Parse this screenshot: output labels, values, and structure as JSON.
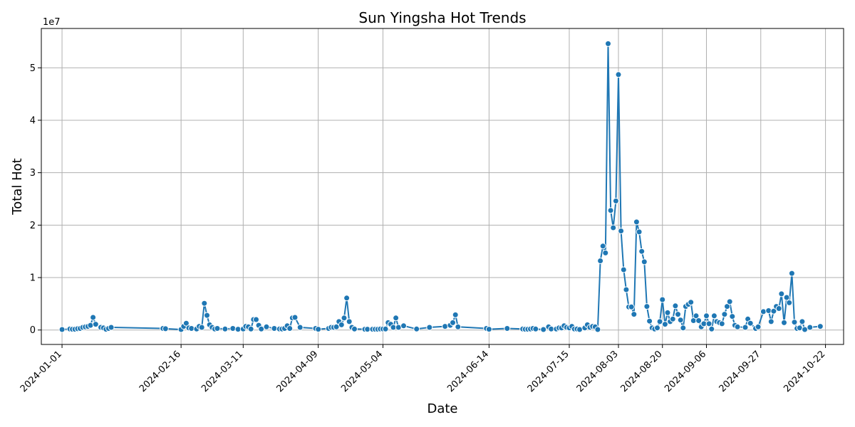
{
  "chart_data": {
    "type": "line",
    "title": "Sun Yingsha Hot Trends",
    "xlabel": "Date",
    "ylabel": "Total Hot",
    "y_scale_label": "1e7",
    "y_tick_divisor": 10000000,
    "ylim": [
      -2750000,
      57500000
    ],
    "xlim": [
      "2023-12-24",
      "2024-10-29"
    ],
    "grid": true,
    "x_ticks": [
      "2024-01-01",
      "2024-02-16",
      "2024-03-11",
      "2024-04-09",
      "2024-05-04",
      "2024-06-14",
      "2024-07-15",
      "2024-08-03",
      "2024-08-20",
      "2024-09-06",
      "2024-09-27",
      "2024-10-22"
    ],
    "y_ticks": [
      0,
      10000000,
      20000000,
      30000000,
      40000000,
      50000000
    ],
    "color": "#1f77b4",
    "series": [
      {
        "points": [
          [
            "2024-01-01",
            100000
          ],
          [
            "2024-01-04",
            200000
          ],
          [
            "2024-01-05",
            150000
          ],
          [
            "2024-01-06",
            150000
          ],
          [
            "2024-01-07",
            250000
          ],
          [
            "2024-01-08",
            300000
          ],
          [
            "2024-01-09",
            500000
          ],
          [
            "2024-01-10",
            600000
          ],
          [
            "2024-01-11",
            700000
          ],
          [
            "2024-01-12",
            900000
          ],
          [
            "2024-01-13",
            2400000
          ],
          [
            "2024-01-14",
            1100000
          ],
          [
            "2024-01-16",
            500000
          ],
          [
            "2024-01-17",
            400000
          ],
          [
            "2024-01-18",
            150000
          ],
          [
            "2024-01-19",
            300000
          ],
          [
            "2024-01-20",
            500000
          ],
          [
            "2024-02-09",
            300000
          ],
          [
            "2024-02-10",
            250000
          ],
          [
            "2024-02-16",
            100000
          ],
          [
            "2024-02-17",
            700000
          ],
          [
            "2024-02-18",
            1300000
          ],
          [
            "2024-02-19",
            400000
          ],
          [
            "2024-02-20",
            300000
          ],
          [
            "2024-02-22",
            200000
          ],
          [
            "2024-02-23",
            700000
          ],
          [
            "2024-02-24",
            500000
          ],
          [
            "2024-02-25",
            5100000
          ],
          [
            "2024-02-26",
            2800000
          ],
          [
            "2024-02-27",
            1000000
          ],
          [
            "2024-02-28",
            500000
          ],
          [
            "2024-02-29",
            200000
          ],
          [
            "2024-03-01",
            300000
          ],
          [
            "2024-03-04",
            200000
          ],
          [
            "2024-03-07",
            300000
          ],
          [
            "2024-03-09",
            150000
          ],
          [
            "2024-03-11",
            200000
          ],
          [
            "2024-03-12",
            700000
          ],
          [
            "2024-03-13",
            600000
          ],
          [
            "2024-03-14",
            200000
          ],
          [
            "2024-03-15",
            2000000
          ],
          [
            "2024-03-16",
            2000000
          ],
          [
            "2024-03-17",
            900000
          ],
          [
            "2024-03-18",
            200000
          ],
          [
            "2024-03-20",
            600000
          ],
          [
            "2024-03-23",
            300000
          ],
          [
            "2024-03-25",
            200000
          ],
          [
            "2024-03-26",
            200000
          ],
          [
            "2024-03-27",
            300000
          ],
          [
            "2024-03-28",
            800000
          ],
          [
            "2024-03-29",
            300000
          ],
          [
            "2024-03-30",
            2300000
          ],
          [
            "2024-03-31",
            2400000
          ],
          [
            "2024-04-02",
            500000
          ],
          [
            "2024-04-08",
            300000
          ],
          [
            "2024-04-09",
            150000
          ],
          [
            "2024-04-13",
            300000
          ],
          [
            "2024-04-14",
            500000
          ],
          [
            "2024-04-15",
            500000
          ],
          [
            "2024-04-16",
            600000
          ],
          [
            "2024-04-17",
            1600000
          ],
          [
            "2024-04-18",
            1000000
          ],
          [
            "2024-04-19",
            2300000
          ],
          [
            "2024-04-20",
            6100000
          ],
          [
            "2024-04-21",
            1600000
          ],
          [
            "2024-04-22",
            500000
          ],
          [
            "2024-04-23",
            200000
          ],
          [
            "2024-04-27",
            150000
          ],
          [
            "2024-04-28",
            150000
          ],
          [
            "2024-04-30",
            150000
          ],
          [
            "2024-05-01",
            150000
          ],
          [
            "2024-05-02",
            150000
          ],
          [
            "2024-05-03",
            200000
          ],
          [
            "2024-05-04",
            200000
          ],
          [
            "2024-05-05",
            200000
          ],
          [
            "2024-05-06",
            1400000
          ],
          [
            "2024-05-07",
            1100000
          ],
          [
            "2024-05-08",
            500000
          ],
          [
            "2024-05-09",
            2300000
          ],
          [
            "2024-05-10",
            500000
          ],
          [
            "2024-05-12",
            800000
          ],
          [
            "2024-05-17",
            200000
          ],
          [
            "2024-05-22",
            500000
          ],
          [
            "2024-05-28",
            700000
          ],
          [
            "2024-05-30",
            900000
          ],
          [
            "2024-05-31",
            1400000
          ],
          [
            "2024-06-01",
            2900000
          ],
          [
            "2024-06-02",
            600000
          ],
          [
            "2024-06-13",
            300000
          ],
          [
            "2024-06-14",
            150000
          ],
          [
            "2024-06-21",
            300000
          ],
          [
            "2024-06-27",
            200000
          ],
          [
            "2024-06-28",
            150000
          ],
          [
            "2024-06-29",
            150000
          ],
          [
            "2024-06-30",
            200000
          ],
          [
            "2024-07-01",
            300000
          ],
          [
            "2024-07-02",
            200000
          ],
          [
            "2024-07-05",
            100000
          ],
          [
            "2024-07-07",
            600000
          ],
          [
            "2024-07-08",
            200000
          ],
          [
            "2024-07-10",
            200000
          ],
          [
            "2024-07-11",
            400000
          ],
          [
            "2024-07-12",
            400000
          ],
          [
            "2024-07-13",
            800000
          ],
          [
            "2024-07-14",
            500000
          ],
          [
            "2024-07-15",
            400000
          ],
          [
            "2024-07-16",
            700000
          ],
          [
            "2024-07-17",
            200000
          ],
          [
            "2024-07-18",
            200000
          ],
          [
            "2024-07-19",
            100000
          ],
          [
            "2024-07-21",
            400000
          ],
          [
            "2024-07-22",
            1000000
          ],
          [
            "2024-07-23",
            500000
          ],
          [
            "2024-07-24",
            700000
          ],
          [
            "2024-07-25",
            600000
          ],
          [
            "2024-07-26",
            100000
          ],
          [
            "2024-07-27",
            13200000
          ],
          [
            "2024-07-28",
            16000000
          ],
          [
            "2024-07-29",
            14700000
          ],
          [
            "2024-07-30",
            54600000
          ],
          [
            "2024-07-31",
            22800000
          ],
          [
            "2024-08-01",
            19500000
          ],
          [
            "2024-08-02",
            24600000
          ],
          [
            "2024-08-03",
            48700000
          ],
          [
            "2024-08-04",
            18900000
          ],
          [
            "2024-08-05",
            11500000
          ],
          [
            "2024-08-06",
            7700000
          ],
          [
            "2024-08-07",
            4400000
          ],
          [
            "2024-08-08",
            4400000
          ],
          [
            "2024-08-09",
            3000000
          ],
          [
            "2024-08-10",
            20600000
          ],
          [
            "2024-08-11",
            18700000
          ],
          [
            "2024-08-12",
            15000000
          ],
          [
            "2024-08-13",
            13000000
          ],
          [
            "2024-08-14",
            4500000
          ],
          [
            "2024-08-15",
            1700000
          ],
          [
            "2024-08-16",
            400000
          ],
          [
            "2024-08-17",
            200000
          ],
          [
            "2024-08-18",
            400000
          ],
          [
            "2024-08-19",
            1600000
          ],
          [
            "2024-08-20",
            5800000
          ],
          [
            "2024-08-21",
            1100000
          ],
          [
            "2024-08-22",
            3300000
          ],
          [
            "2024-08-23",
            1600000
          ],
          [
            "2024-08-24",
            2100000
          ],
          [
            "2024-08-25",
            4600000
          ],
          [
            "2024-08-26",
            3000000
          ],
          [
            "2024-08-27",
            1900000
          ],
          [
            "2024-08-28",
            400000
          ],
          [
            "2024-08-29",
            4500000
          ],
          [
            "2024-08-30",
            4900000
          ],
          [
            "2024-08-31",
            5300000
          ],
          [
            "2024-09-01",
            1800000
          ],
          [
            "2024-09-02",
            2700000
          ],
          [
            "2024-09-03",
            1800000
          ],
          [
            "2024-09-04",
            600000
          ],
          [
            "2024-09-05",
            1200000
          ],
          [
            "2024-09-06",
            2700000
          ],
          [
            "2024-09-07",
            1200000
          ],
          [
            "2024-09-08",
            200000
          ],
          [
            "2024-09-09",
            2700000
          ],
          [
            "2024-09-10",
            1600000
          ],
          [
            "2024-09-11",
            1400000
          ],
          [
            "2024-09-12",
            1200000
          ],
          [
            "2024-09-13",
            3000000
          ],
          [
            "2024-09-14",
            4500000
          ],
          [
            "2024-09-15",
            5400000
          ],
          [
            "2024-09-16",
            2600000
          ],
          [
            "2024-09-17",
            900000
          ],
          [
            "2024-09-18",
            600000
          ],
          [
            "2024-09-21",
            500000
          ],
          [
            "2024-09-22",
            2100000
          ],
          [
            "2024-09-23",
            1300000
          ],
          [
            "2024-09-25",
            300000
          ],
          [
            "2024-09-26",
            600000
          ],
          [
            "2024-09-28",
            3500000
          ],
          [
            "2024-09-30",
            3700000
          ],
          [
            "2024-10-01",
            1600000
          ],
          [
            "2024-10-02",
            3600000
          ],
          [
            "2024-10-03",
            4500000
          ],
          [
            "2024-10-04",
            4100000
          ],
          [
            "2024-10-05",
            6900000
          ],
          [
            "2024-10-06",
            1400000
          ],
          [
            "2024-10-07",
            6200000
          ],
          [
            "2024-10-08",
            5200000
          ],
          [
            "2024-10-09",
            10800000
          ],
          [
            "2024-10-10",
            1500000
          ],
          [
            "2024-10-11",
            300000
          ],
          [
            "2024-10-12",
            400000
          ],
          [
            "2024-10-13",
            1600000
          ],
          [
            "2024-10-14",
            100000
          ],
          [
            "2024-10-16",
            500000
          ],
          [
            "2024-10-20",
            700000
          ]
        ]
      }
    ]
  }
}
